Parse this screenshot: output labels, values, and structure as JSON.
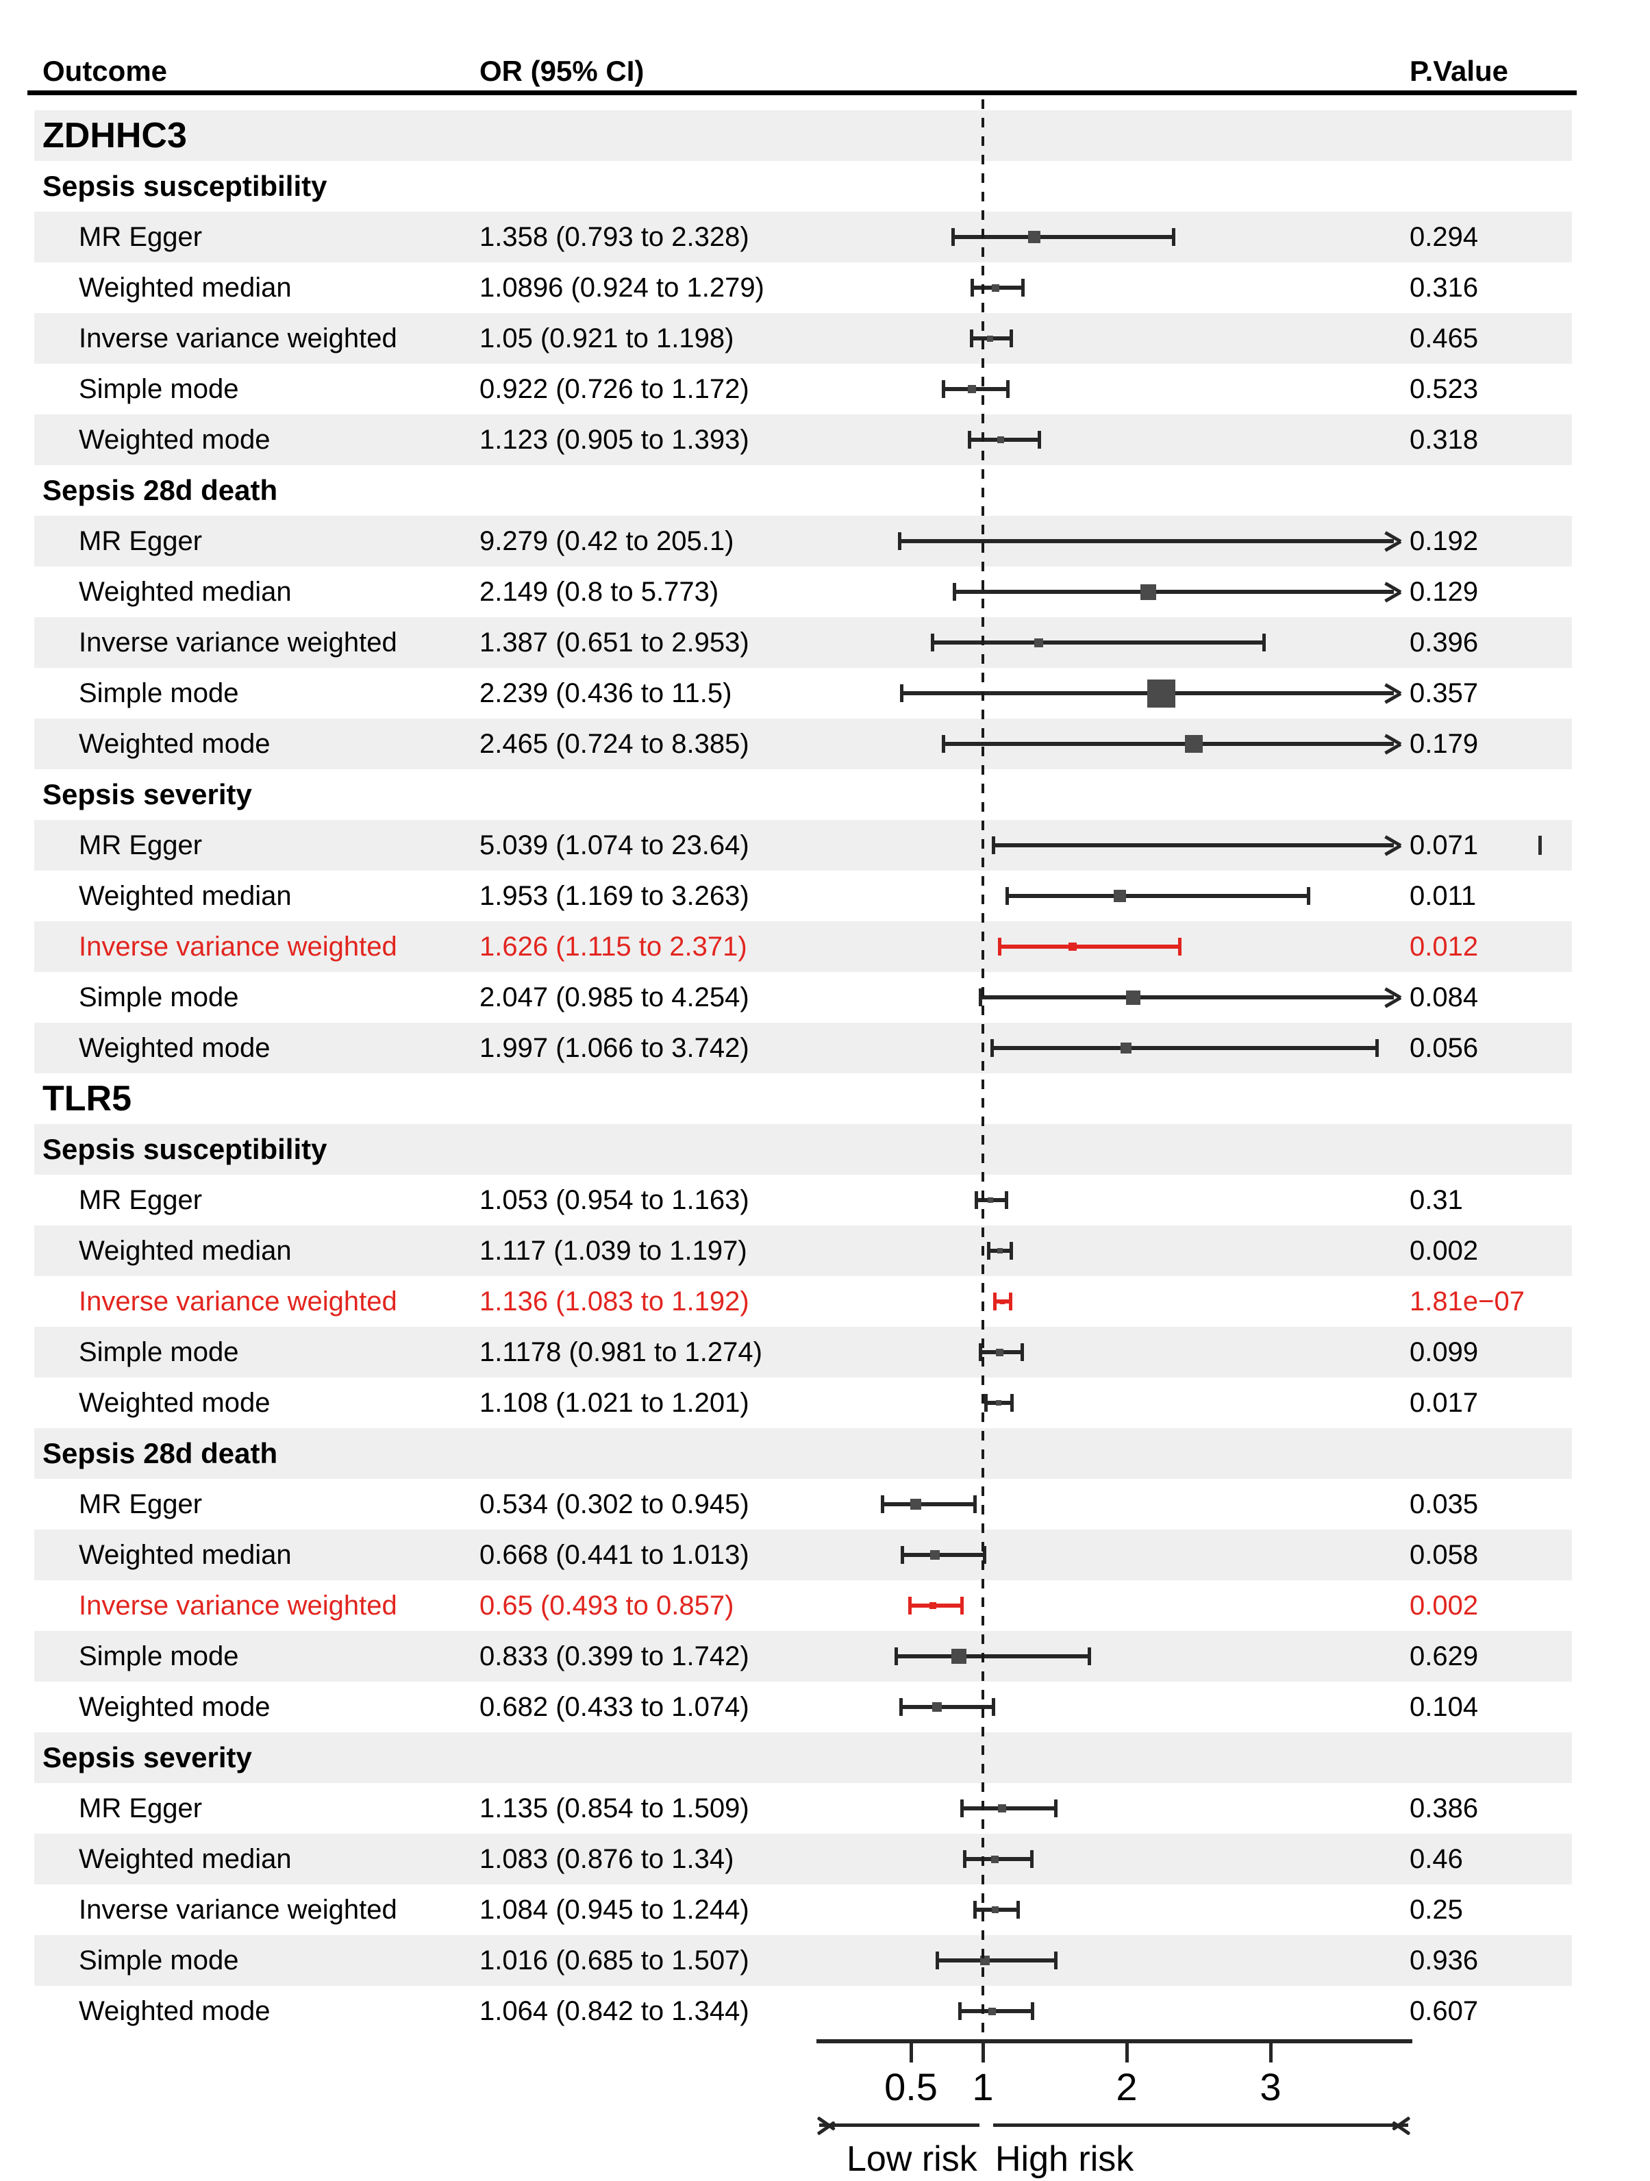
{
  "header": {
    "outcome": "Outcome",
    "or_ci": "OR (95% CI)",
    "p_value": "P.Value"
  },
  "colors": {
    "stripe": "#efefef",
    "highlight_red": "#e2251f",
    "line": "#262626",
    "marker": "#4a4a4a",
    "text": "#000000"
  },
  "chart_data": {
    "type": "forest",
    "columns": [
      "Outcome",
      "OR (95% CI)",
      "P.Value"
    ],
    "axis": {
      "scale": "linear",
      "ticks": [
        0.5,
        1,
        2,
        3
      ],
      "reference_line": 1,
      "xlim": [
        0.15,
        3.95
      ],
      "low_label": "Low risk",
      "high_label": "High risk"
    },
    "rows": [
      {
        "type": "gene",
        "label": "ZDHHC3"
      },
      {
        "type": "section",
        "label": "Sepsis susceptibility"
      },
      {
        "type": "method",
        "label": "MR Egger",
        "or_text": "1.358 (0.793 to 2.328)",
        "p": "0.294",
        "est": 1.358,
        "lo": 0.793,
        "hi": 2.328,
        "marker": 18,
        "arrow": false,
        "red": false
      },
      {
        "type": "method",
        "label": "Weighted median",
        "or_text": "1.0896 (0.924 to 1.279)",
        "p": "0.316",
        "est": 1.0896,
        "lo": 0.924,
        "hi": 1.279,
        "marker": 11,
        "arrow": false,
        "red": false
      },
      {
        "type": "method",
        "label": "Inverse variance weighted",
        "or_text": "1.05 (0.921 to 1.198)",
        "p": "0.465",
        "est": 1.05,
        "lo": 0.921,
        "hi": 1.198,
        "marker": 9,
        "arrow": false,
        "red": false
      },
      {
        "type": "method",
        "label": "Simple mode",
        "or_text": "0.922 (0.726 to 1.172)",
        "p": "0.523",
        "est": 0.922,
        "lo": 0.726,
        "hi": 1.172,
        "marker": 12,
        "arrow": false,
        "red": false
      },
      {
        "type": "method",
        "label": "Weighted mode",
        "or_text": "1.123 (0.905 to 1.393)",
        "p": "0.318",
        "est": 1.123,
        "lo": 0.905,
        "hi": 1.393,
        "marker": 10,
        "arrow": false,
        "red": false
      },
      {
        "type": "section",
        "label": "Sepsis 28d death"
      },
      {
        "type": "method",
        "label": "MR Egger",
        "or_text": "9.279 (0.42 to 205.1)",
        "p": "0.192",
        "est": 9.279,
        "lo": 0.42,
        "hi": 205.1,
        "marker": 0,
        "arrow": true,
        "red": false
      },
      {
        "type": "method",
        "label": "Weighted median",
        "or_text": "2.149 (0.8 to 5.773)",
        "p": "0.129",
        "est": 2.149,
        "lo": 0.8,
        "hi": 5.773,
        "marker": 23,
        "arrow": true,
        "red": false
      },
      {
        "type": "method",
        "label": "Inverse variance weighted",
        "or_text": "1.387 (0.651 to 2.953)",
        "p": "0.396",
        "est": 1.387,
        "lo": 0.651,
        "hi": 2.953,
        "marker": 13,
        "arrow": false,
        "red": false
      },
      {
        "type": "method",
        "label": "Simple mode",
        "or_text": "2.239 (0.436 to 11.5)",
        "p": "0.357",
        "est": 2.239,
        "lo": 0.436,
        "hi": 11.5,
        "marker": 41,
        "arrow": true,
        "red": false
      },
      {
        "type": "method",
        "label": "Weighted mode",
        "or_text": "2.465 (0.724 to 8.385)",
        "p": "0.179",
        "est": 2.465,
        "lo": 0.724,
        "hi": 8.385,
        "marker": 26,
        "arrow": true,
        "red": false
      },
      {
        "type": "section",
        "label": "Sepsis severity"
      },
      {
        "type": "method",
        "label": "MR Egger",
        "or_text": "5.039 (1.074 to 23.64)",
        "p": "0.071",
        "est": 5.039,
        "lo": 1.074,
        "hi": 23.64,
        "marker": 0,
        "arrow": true,
        "red": false,
        "stray_tick": true
      },
      {
        "type": "method",
        "label": "Weighted median",
        "or_text": "1.953 (1.169 to 3.263)",
        "p": "0.011",
        "est": 1.953,
        "lo": 1.169,
        "hi": 3.263,
        "marker": 18,
        "arrow": false,
        "red": false
      },
      {
        "type": "method",
        "label": "Inverse variance weighted",
        "or_text": "1.626 (1.115 to 2.371)",
        "p": "0.012",
        "est": 1.626,
        "lo": 1.115,
        "hi": 2.371,
        "marker": 12,
        "arrow": false,
        "red": true
      },
      {
        "type": "method",
        "label": "Simple mode",
        "or_text": "2.047 (0.985 to 4.254)",
        "p": "0.084",
        "est": 2.047,
        "lo": 0.985,
        "hi": 4.254,
        "marker": 21,
        "arrow": true,
        "red": false
      },
      {
        "type": "method",
        "label": "Weighted mode",
        "or_text": "1.997 (1.066 to 3.742)",
        "p": "0.056",
        "est": 1.997,
        "lo": 1.066,
        "hi": 3.742,
        "marker": 16,
        "arrow": false,
        "red": false
      },
      {
        "type": "gene",
        "label": "TLR5"
      },
      {
        "type": "section",
        "label": "Sepsis susceptibility"
      },
      {
        "type": "method",
        "label": "MR Egger",
        "or_text": "1.053 (0.954 to 1.163)",
        "p": "0.31",
        "est": 1.053,
        "lo": 0.954,
        "hi": 1.163,
        "marker": 8,
        "arrow": false,
        "red": false
      },
      {
        "type": "method",
        "label": "Weighted median",
        "or_text": "1.117 (1.039 to 1.197)",
        "p": "0.002",
        "est": 1.117,
        "lo": 1.039,
        "hi": 1.197,
        "marker": 8,
        "arrow": false,
        "red": false
      },
      {
        "type": "method",
        "label": "Inverse variance weighted",
        "or_text": "1.136 (1.083 to 1.192)",
        "p": "1.81e−07",
        "est": 1.136,
        "lo": 1.083,
        "hi": 1.192,
        "marker": 7,
        "arrow": false,
        "red": true
      },
      {
        "type": "method",
        "label": "Simple mode",
        "or_text": "1.1178 (0.981 to 1.274)",
        "p": "0.099",
        "est": 1.1178,
        "lo": 0.981,
        "hi": 1.274,
        "marker": 11,
        "arrow": false,
        "red": false
      },
      {
        "type": "method",
        "label": "Weighted mode",
        "or_text": "1.108 (1.021 to 1.201)",
        "p": "0.017",
        "est": 1.108,
        "lo": 1.021,
        "hi": 1.201,
        "marker": 8,
        "arrow": false,
        "red": false
      },
      {
        "type": "section",
        "label": "Sepsis 28d death"
      },
      {
        "type": "method",
        "label": "MR Egger",
        "or_text": "0.534 (0.302 to 0.945)",
        "p": "0.035",
        "est": 0.534,
        "lo": 0.302,
        "hi": 0.945,
        "marker": 16,
        "arrow": false,
        "red": false
      },
      {
        "type": "method",
        "label": "Weighted median",
        "or_text": "0.668 (0.441 to 1.013)",
        "p": "0.058",
        "est": 0.668,
        "lo": 0.441,
        "hi": 1.013,
        "marker": 14,
        "arrow": false,
        "red": false
      },
      {
        "type": "method",
        "label": "Inverse variance weighted",
        "or_text": "0.65 (0.493 to 0.857)",
        "p": "0.002",
        "est": 0.65,
        "lo": 0.493,
        "hi": 0.857,
        "marker": 10,
        "arrow": false,
        "red": true
      },
      {
        "type": "method",
        "label": "Simple mode",
        "or_text": "0.833 (0.399 to 1.742)",
        "p": "0.629",
        "est": 0.833,
        "lo": 0.399,
        "hi": 1.742,
        "marker": 22,
        "arrow": false,
        "red": false
      },
      {
        "type": "method",
        "label": "Weighted mode",
        "or_text": "0.682 (0.433 to 1.074)",
        "p": "0.104",
        "est": 0.682,
        "lo": 0.433,
        "hi": 1.074,
        "marker": 14,
        "arrow": false,
        "red": false
      },
      {
        "type": "section",
        "label": "Sepsis severity"
      },
      {
        "type": "method",
        "label": "MR Egger",
        "or_text": "1.135 (0.854 to 1.509)",
        "p": "0.386",
        "est": 1.135,
        "lo": 0.854,
        "hi": 1.509,
        "marker": 12,
        "arrow": false,
        "red": false
      },
      {
        "type": "method",
        "label": "Weighted median",
        "or_text": "1.083 (0.876 to 1.34)",
        "p": "0.46",
        "est": 1.083,
        "lo": 0.876,
        "hi": 1.34,
        "marker": 11,
        "arrow": false,
        "red": false
      },
      {
        "type": "method",
        "label": "Inverse variance weighted",
        "or_text": "1.084 (0.945 to 1.244)",
        "p": "0.25",
        "est": 1.084,
        "lo": 0.945,
        "hi": 1.244,
        "marker": 10,
        "arrow": false,
        "red": false
      },
      {
        "type": "method",
        "label": "Simple mode",
        "or_text": "1.016 (0.685 to 1.507)",
        "p": "0.936",
        "est": 1.016,
        "lo": 0.685,
        "hi": 1.507,
        "marker": 14,
        "arrow": false,
        "red": false
      },
      {
        "type": "method",
        "label": "Weighted mode",
        "or_text": "1.064 (0.842 to 1.344)",
        "p": "0.607",
        "est": 1.064,
        "lo": 0.842,
        "hi": 1.344,
        "marker": 11,
        "arrow": false,
        "red": false
      }
    ]
  }
}
